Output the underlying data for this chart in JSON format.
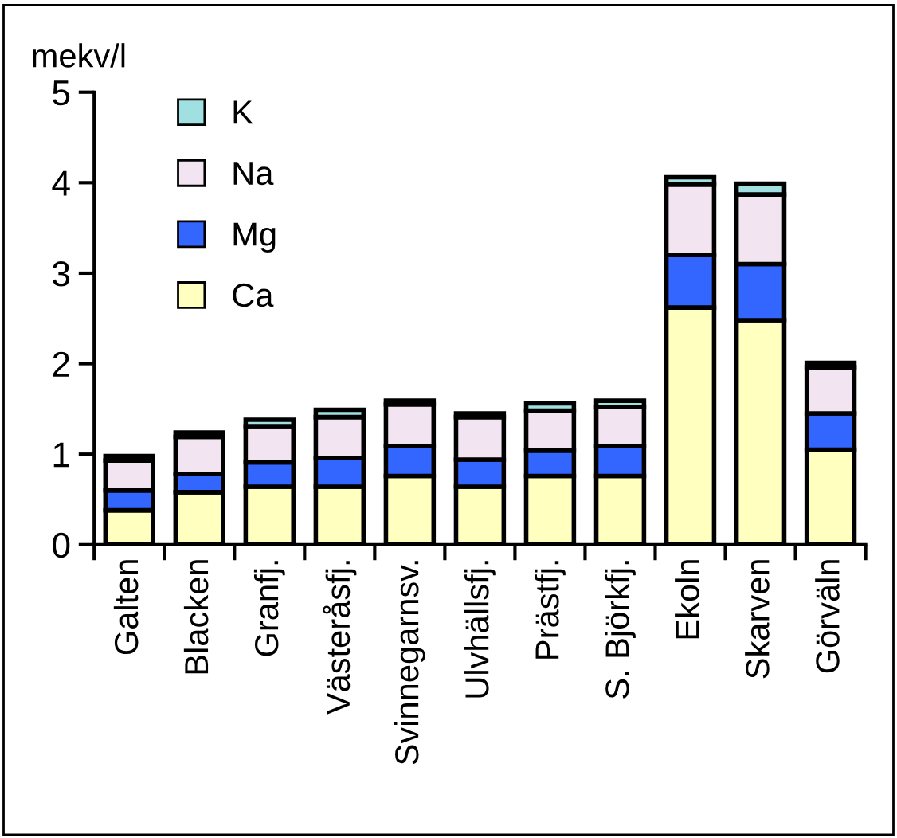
{
  "chart_data": {
    "type": "bar",
    "stacked": true,
    "ylabel": "mekv/l",
    "categories": [
      "Galten",
      "Blacken",
      "Granfj.",
      "Västeråsfj.",
      "Svinnegarnsv.",
      "Ulvhällsfj.",
      "Prästfj.",
      "S. Björkfj.",
      "Ekoln",
      "Skarven",
      "Görväln"
    ],
    "series": [
      {
        "name": "Ca",
        "color": "#ffffc0",
        "values": [
          0.38,
          0.58,
          0.64,
          0.64,
          0.76,
          0.64,
          0.76,
          0.76,
          2.62,
          2.48,
          1.05
        ]
      },
      {
        "name": "Mg",
        "color": "#3366ff",
        "values": [
          0.22,
          0.2,
          0.27,
          0.32,
          0.33,
          0.3,
          0.28,
          0.33,
          0.58,
          0.62,
          0.4
        ]
      },
      {
        "name": "Na",
        "color": "#f2e4f0",
        "values": [
          0.33,
          0.41,
          0.4,
          0.45,
          0.46,
          0.47,
          0.44,
          0.43,
          0.78,
          0.77,
          0.51
        ]
      },
      {
        "name": "K",
        "color": "#a0e0e0",
        "values": [
          0.05,
          0.05,
          0.07,
          0.08,
          0.04,
          0.04,
          0.08,
          0.07,
          0.08,
          0.12,
          0.05
        ]
      }
    ],
    "ylim": [
      0,
      5
    ],
    "yticks": [
      0,
      1,
      2,
      3,
      4,
      5
    ],
    "grid": false,
    "legend": "top left"
  }
}
